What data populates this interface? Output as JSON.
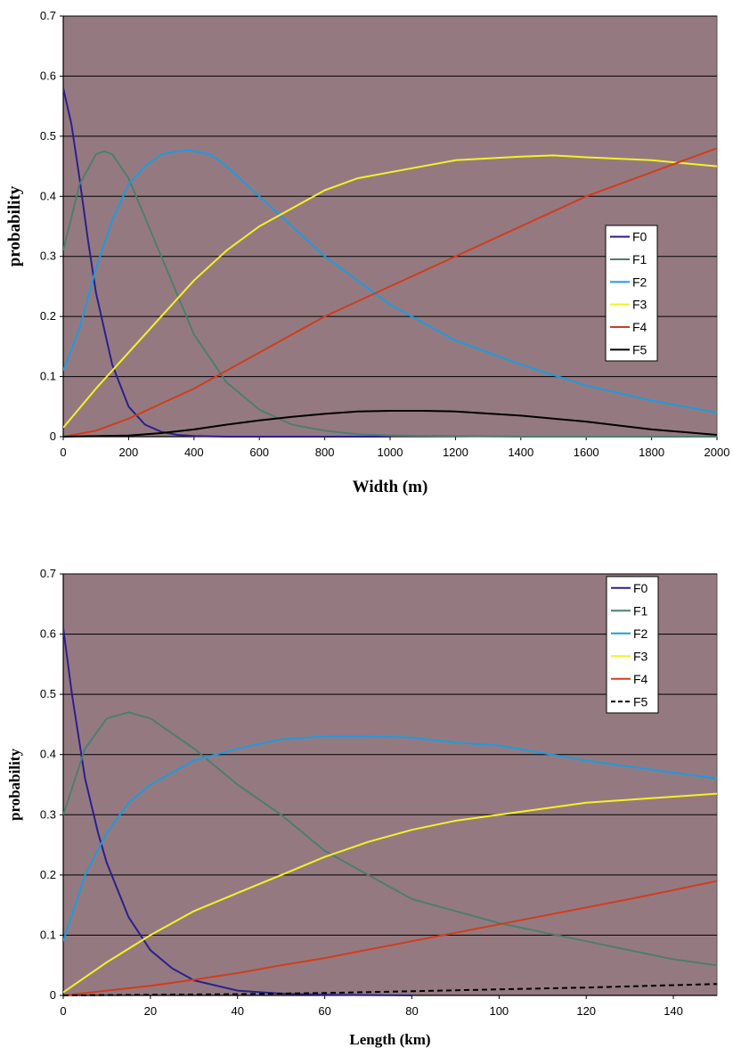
{
  "chart_data": [
    {
      "type": "line",
      "xlabel": "Width (m)",
      "ylabel": "probability",
      "xlim": [
        0,
        2000
      ],
      "ylim": [
        0,
        0.7
      ],
      "xticks": [
        0,
        200,
        400,
        600,
        800,
        1000,
        1200,
        1400,
        1600,
        1800,
        2000
      ],
      "yticks": [
        0,
        0.1,
        0.2,
        0.3,
        0.4,
        0.5,
        0.6,
        0.7
      ],
      "ytick_labels": [
        "0",
        "0.1",
        "0.2",
        "0.3",
        "0.4",
        "0.5",
        "0.6",
        "0.7"
      ],
      "grid": "horizontal",
      "legend_position": "right-middle",
      "colors": {
        "plot_bg": "#947a80",
        "grid": "#000000",
        "F0": "#2b1f8f",
        "F1": "#4e7d70",
        "F2": "#1e9be0",
        "F3": "#f4f224",
        "F4": "#d23c1c",
        "F5": "#000000"
      },
      "series": [
        {
          "name": "F0",
          "x": [
            0,
            25,
            50,
            75,
            100,
            150,
            200,
            250,
            300,
            350,
            400,
            500,
            600,
            800,
            1000
          ],
          "y": [
            0.58,
            0.52,
            0.43,
            0.33,
            0.24,
            0.12,
            0.05,
            0.02,
            0.008,
            0.003,
            0.001,
            0,
            0,
            0,
            0
          ]
        },
        {
          "name": "F1",
          "x": [
            0,
            50,
            100,
            125,
            150,
            200,
            300,
            400,
            500,
            600,
            700,
            800,
            900,
            1000,
            1200,
            1400,
            2000
          ],
          "y": [
            0.31,
            0.42,
            0.47,
            0.475,
            0.47,
            0.43,
            0.3,
            0.17,
            0.09,
            0.045,
            0.02,
            0.01,
            0.004,
            0.002,
            0.001,
            0,
            0
          ]
        },
        {
          "name": "F2",
          "x": [
            0,
            50,
            100,
            150,
            200,
            250,
            300,
            350,
            380,
            450,
            500,
            600,
            700,
            800,
            1000,
            1200,
            1400,
            1600,
            1800,
            2000
          ],
          "y": [
            0.11,
            0.18,
            0.28,
            0.36,
            0.42,
            0.45,
            0.47,
            0.475,
            0.477,
            0.47,
            0.45,
            0.4,
            0.35,
            0.3,
            0.22,
            0.16,
            0.12,
            0.085,
            0.06,
            0.04
          ]
        },
        {
          "name": "F3",
          "x": [
            0,
            100,
            200,
            300,
            400,
            500,
            600,
            700,
            800,
            900,
            1000,
            1200,
            1400,
            1500,
            1600,
            1800,
            2000
          ],
          "y": [
            0.015,
            0.08,
            0.14,
            0.2,
            0.26,
            0.31,
            0.35,
            0.38,
            0.41,
            0.43,
            0.44,
            0.46,
            0.466,
            0.468,
            0.465,
            0.46,
            0.45
          ]
        },
        {
          "name": "F4",
          "x": [
            0,
            100,
            200,
            300,
            400,
            600,
            800,
            1000,
            1200,
            1400,
            1600,
            1800,
            2000
          ],
          "y": [
            0,
            0.01,
            0.03,
            0.055,
            0.08,
            0.14,
            0.2,
            0.25,
            0.3,
            0.35,
            0.4,
            0.44,
            0.48
          ]
        },
        {
          "name": "F5",
          "x": [
            0,
            200,
            300,
            400,
            500,
            600,
            700,
            800,
            900,
            1000,
            1100,
            1200,
            1400,
            1600,
            1800,
            2000
          ],
          "y": [
            0,
            0.002,
            0.006,
            0.012,
            0.02,
            0.027,
            0.033,
            0.038,
            0.042,
            0.043,
            0.043,
            0.042,
            0.035,
            0.025,
            0.012,
            0.003
          ]
        }
      ]
    },
    {
      "type": "line",
      "xlabel": "Length (km)",
      "ylabel": "probability",
      "xlim": [
        0,
        150
      ],
      "ylim": [
        0,
        0.7
      ],
      "xticks": [
        0,
        20,
        40,
        60,
        80,
        100,
        120,
        140
      ],
      "yticks": [
        0,
        0.1,
        0.2,
        0.3,
        0.4,
        0.5,
        0.6,
        0.7
      ],
      "ytick_labels": [
        "0",
        "0.1",
        "0.2",
        "0.3",
        "0.4",
        "0.5",
        "0.6",
        "0.7"
      ],
      "grid": "horizontal",
      "legend_position": "top-right",
      "colors": {
        "plot_bg": "#947a80",
        "grid": "#000000",
        "F0": "#2b1f8f",
        "F1": "#4e7d70",
        "F2": "#1e9be0",
        "F3": "#f4f224",
        "F4": "#d23c1c",
        "F5": "#000000"
      },
      "series": [
        {
          "name": "F0",
          "x": [
            0,
            2,
            5,
            8,
            10,
            15,
            20,
            25,
            30,
            40,
            50,
            60,
            80
          ],
          "y": [
            0.61,
            0.5,
            0.36,
            0.27,
            0.22,
            0.13,
            0.075,
            0.045,
            0.025,
            0.008,
            0.003,
            0.001,
            0
          ]
        },
        {
          "name": "F1",
          "x": [
            0,
            5,
            10,
            15,
            20,
            30,
            40,
            50,
            60,
            70,
            80,
            100,
            120,
            140,
            150
          ],
          "y": [
            0.3,
            0.41,
            0.46,
            0.47,
            0.46,
            0.41,
            0.35,
            0.3,
            0.24,
            0.2,
            0.16,
            0.12,
            0.09,
            0.06,
            0.05
          ]
        },
        {
          "name": "F2",
          "x": [
            0,
            5,
            10,
            15,
            20,
            30,
            40,
            50,
            60,
            70,
            80,
            90,
            100,
            120,
            140,
            150
          ],
          "y": [
            0.09,
            0.2,
            0.27,
            0.32,
            0.35,
            0.39,
            0.41,
            0.425,
            0.43,
            0.43,
            0.428,
            0.42,
            0.415,
            0.39,
            0.37,
            0.36
          ]
        },
        {
          "name": "F3",
          "x": [
            0,
            10,
            20,
            30,
            40,
            50,
            60,
            70,
            80,
            90,
            100,
            110,
            120,
            130,
            140,
            150
          ],
          "y": [
            0.005,
            0.055,
            0.1,
            0.14,
            0.17,
            0.2,
            0.23,
            0.255,
            0.275,
            0.29,
            0.3,
            0.31,
            0.32,
            0.325,
            0.33,
            0.335
          ]
        },
        {
          "name": "F4",
          "x": [
            0,
            10,
            20,
            30,
            40,
            50,
            60,
            70,
            80,
            90,
            100,
            110,
            120,
            130,
            140,
            150
          ],
          "y": [
            0,
            0.008,
            0.016,
            0.026,
            0.037,
            0.05,
            0.062,
            0.076,
            0.09,
            0.104,
            0.118,
            0.132,
            0.146,
            0.16,
            0.175,
            0.19
          ]
        },
        {
          "name": "F5",
          "x": [
            0,
            20,
            40,
            60,
            80,
            100,
            120,
            140,
            150
          ],
          "y": [
            0,
            0.001,
            0.002,
            0.004,
            0.007,
            0.01,
            0.013,
            0.017,
            0.019
          ]
        }
      ]
    }
  ]
}
